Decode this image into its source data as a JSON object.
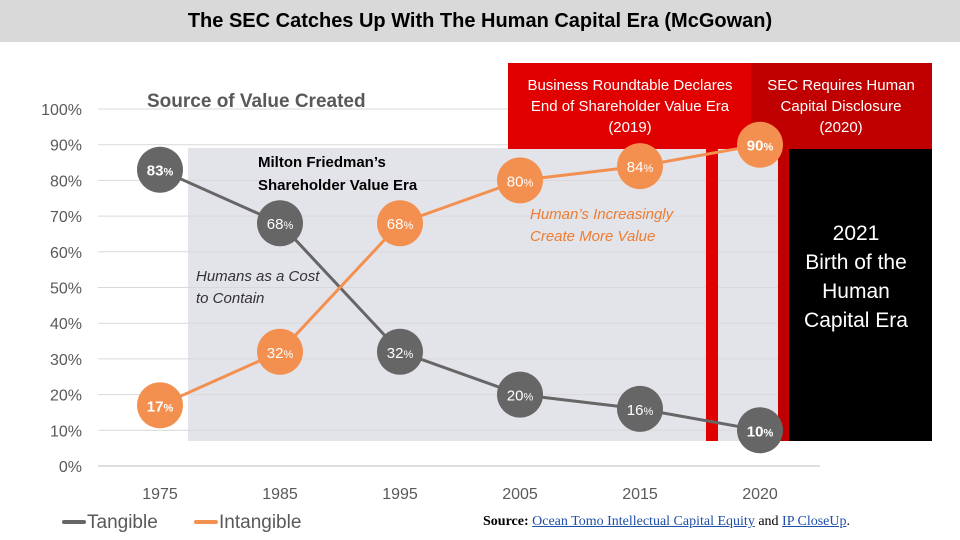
{
  "header": {
    "title": "The SEC Catches Up With The Human Capital Era (McGowan)"
  },
  "chart_data": {
    "type": "line",
    "title": "Source of Value Created",
    "categories": [
      "1975",
      "1985",
      "1995",
      "2005",
      "2015",
      "2020"
    ],
    "y_ticks": [
      "0%",
      "10%",
      "20%",
      "30%",
      "40%",
      "50%",
      "60%",
      "70%",
      "80%",
      "90%",
      "100%"
    ],
    "ylim": [
      0,
      100
    ],
    "grid": true,
    "legend_position": "bottom-left",
    "series": [
      {
        "name": "Tangible",
        "color": "#666666",
        "values": [
          83,
          68,
          32,
          20,
          16,
          10
        ],
        "data_labels": [
          "83",
          "68",
          "32",
          "20",
          "16",
          "10"
        ]
      },
      {
        "name": "Intangible",
        "color": "#f4904f",
        "values": [
          17,
          32,
          68,
          80,
          84,
          90
        ],
        "data_labels": [
          "17",
          "32",
          "68",
          "80",
          "84",
          "90"
        ]
      }
    ],
    "label_unit": "%",
    "annotations": {
      "friedman_line1": "Milton Friedman’s",
      "friedman_line2": "Shareholder Value Era",
      "cost_line1": "Humans as a Cost",
      "cost_line2": "to Contain",
      "human_line1": "Human’s Increasingly",
      "human_line2": "Create More Value",
      "brt_line1": "Business Roundtable Declares",
      "brt_line2": "End of Shareholder Value Era",
      "brt_line3": "(2019)",
      "sec_line1": "SEC Requires Human",
      "sec_line2": "Capital Disclosure",
      "sec_line3": "(2020)",
      "era_line1": "2021",
      "era_line2": "Birth of the",
      "era_line3": "Human",
      "era_line4": "Capital Era"
    }
  },
  "colors": {
    "tangible": "#666666",
    "intangible": "#f4904f",
    "annotation_orange": "#ed7d31",
    "red_bright": "#e00000",
    "red_dark": "#c00000",
    "shaded": "#e3e3ea",
    "black": "#000000"
  },
  "source": {
    "label": "Source:",
    "link1": "Ocean Tomo Intellectual Capital Equity",
    "connector": "and",
    "link2": "IP CloseUp",
    "end": "."
  }
}
